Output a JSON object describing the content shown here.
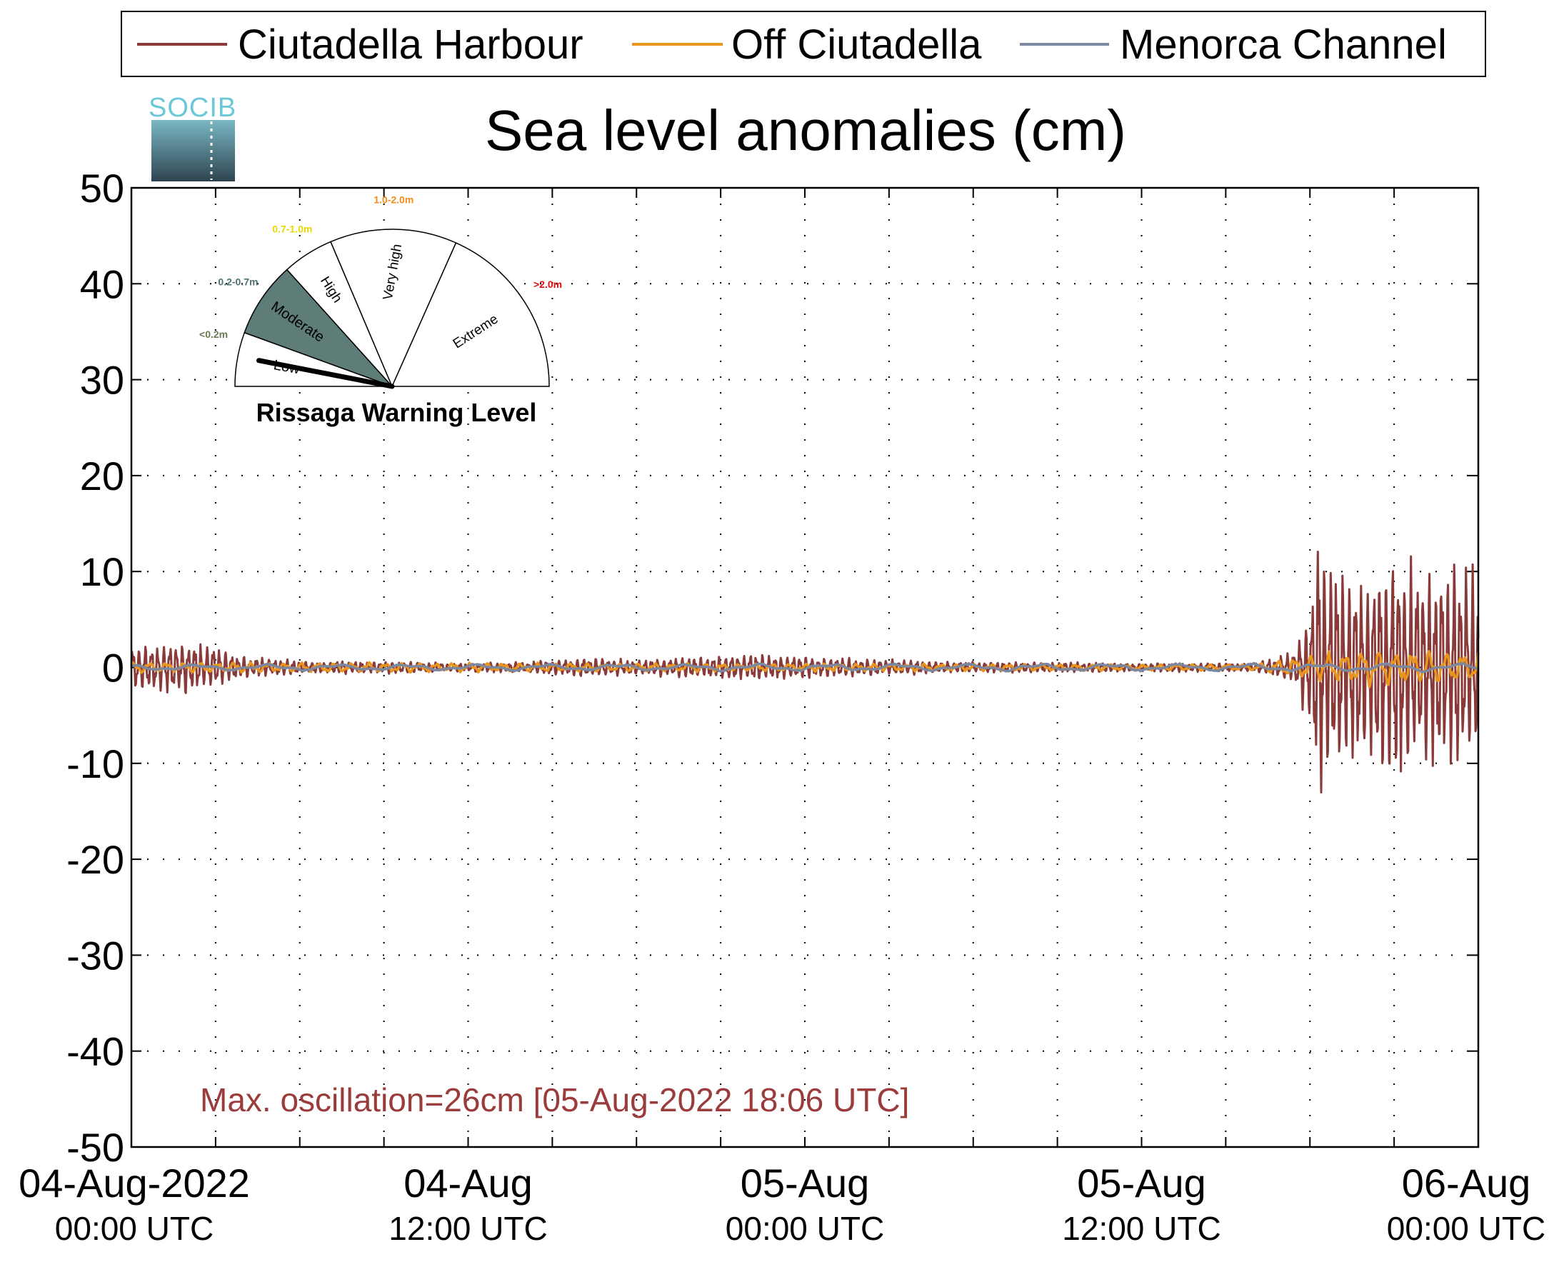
{
  "chart_data": {
    "type": "line",
    "title": "Sea level anomalies (cm)",
    "xlabel": "",
    "ylabel": "",
    "ylim": [
      -50,
      50
    ],
    "y_ticks": [
      "50",
      "40",
      "30",
      "20",
      "10",
      "0",
      "-10",
      "-20",
      "-30",
      "-40",
      "-50"
    ],
    "x_range_hours": [
      0,
      48
    ],
    "x_ticks": [
      {
        "date": "04-Aug-2022",
        "time": "00:00 UTC"
      },
      {
        "date": "04-Aug",
        "time": "12:00 UTC"
      },
      {
        "date": "05-Aug",
        "time": "00:00 UTC"
      },
      {
        "date": "05-Aug",
        "time": "12:00 UTC"
      },
      {
        "date": "06-Aug",
        "time": "00:00 UTC"
      }
    ],
    "grid": true,
    "legend_position": "top",
    "series": [
      {
        "name": "Ciutadella Harbour",
        "color": "#8b3a3a",
        "envelope": [
          [
            0,
            2
          ],
          [
            2,
            2.5
          ],
          [
            4,
            1
          ],
          [
            6,
            0.6
          ],
          [
            8,
            0.6
          ],
          [
            10,
            0.5
          ],
          [
            12,
            0.4
          ],
          [
            14,
            0.5
          ],
          [
            16,
            0.9
          ],
          [
            18,
            0.7
          ],
          [
            22,
            1.2
          ],
          [
            24,
            1
          ],
          [
            26,
            0.8
          ],
          [
            30,
            0.5
          ],
          [
            36,
            0.4
          ],
          [
            40,
            0.4
          ],
          [
            41.5,
            1.5
          ],
          [
            42,
            6
          ],
          [
            42.3,
            13
          ],
          [
            43,
            10
          ],
          [
            44,
            9
          ],
          [
            45,
            11
          ],
          [
            46,
            9
          ],
          [
            47,
            10
          ],
          [
            48,
            9
          ]
        ]
      },
      {
        "name": "Off Ciutadella",
        "color": "#e8961e",
        "envelope": [
          [
            0,
            0.5
          ],
          [
            36,
            0.3
          ],
          [
            40,
            0.3
          ],
          [
            42,
            1.2
          ],
          [
            44,
            1.8
          ],
          [
            46,
            1.6
          ],
          [
            48,
            1.4
          ]
        ]
      },
      {
        "name": "Menorca Channel",
        "color": "#7b88a0",
        "envelope": [
          [
            0,
            0.3
          ],
          [
            48,
            0.4
          ]
        ]
      }
    ],
    "annotation": "Max. oscillation=26cm [05-Aug-2022 18:06 UTC]",
    "annotation_color": "#9b3c3c"
  },
  "gauge": {
    "title": "Rissaga Warning Level",
    "needle_level": "Low",
    "sectors": [
      {
        "label": "Low",
        "range": "<0.2m",
        "range_color": "#6b7a55",
        "fill": "#ffffff"
      },
      {
        "label": "Moderate",
        "range": "0.2-0.7m",
        "range_color": "#4f7272",
        "fill": "#5e7c78"
      },
      {
        "label": "High",
        "range": "0.7-1.0m",
        "range_color": "#e6d800",
        "fill": "#ffffff"
      },
      {
        "label": "Very high",
        "range": "1.0-2.0m",
        "range_color": "#f08c1a",
        "fill": "#ffffff"
      },
      {
        "label": "Extreme",
        "range": ">2.0m",
        "range_color": "#e01010",
        "fill": "#ffffff"
      }
    ]
  },
  "logo": {
    "text": "SOCIB"
  }
}
